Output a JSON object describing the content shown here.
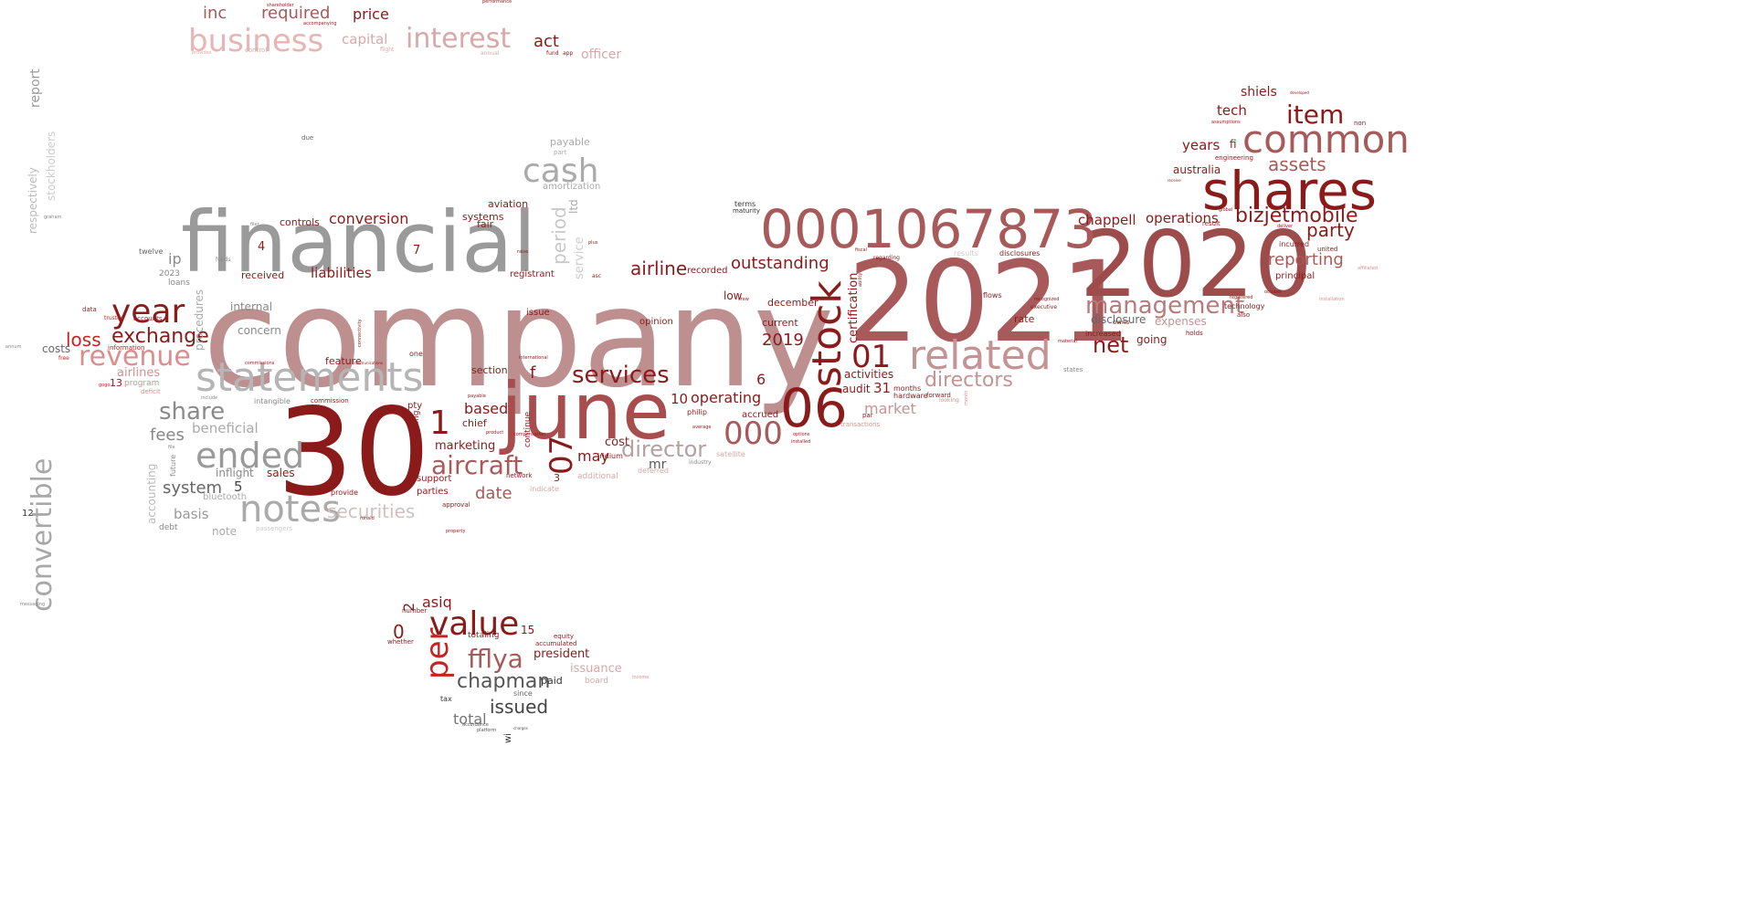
{
  "words": [
    {
      "text": "company",
      "color": "#bd8f8f"
    },
    {
      "text": "financial",
      "color": "#9a9a9a"
    },
    {
      "text": "30",
      "color": "#8b1a1a"
    },
    {
      "text": "2021",
      "color": "#a85a5a"
    },
    {
      "text": "2020",
      "color": "#9e4b4b"
    },
    {
      "text": "june",
      "color": "#a84d4d"
    },
    {
      "text": "shares",
      "color": "#8b1a1a"
    },
    {
      "text": "0001067873",
      "color": "#a85a5a"
    },
    {
      "text": "statements",
      "color": "#b5b5b5"
    },
    {
      "text": "stock",
      "color": "#8b1a1a"
    },
    {
      "text": "06",
      "color": "#8b1a1a"
    },
    {
      "text": "related",
      "color": "#c49494"
    },
    {
      "text": "common",
      "color": "#a85a5a"
    },
    {
      "text": "notes",
      "color": "#aaaaaa"
    },
    {
      "text": "ended",
      "color": "#9a9a9a"
    },
    {
      "text": "business",
      "color": "#e8b4b4"
    },
    {
      "text": "interest",
      "color": "#d9a8a8"
    },
    {
      "text": "cash",
      "color": "#aaaaaa"
    },
    {
      "text": "value",
      "color": "#8b1a1a"
    },
    {
      "text": "year",
      "color": "#8b1a1a"
    },
    {
      "text": "revenue",
      "color": "#d98f8f"
    },
    {
      "text": "convertible",
      "color": "#a8a8a8"
    },
    {
      "text": "aircraft",
      "color": "#a85a5a"
    },
    {
      "text": "management",
      "color": "#b87a7a"
    },
    {
      "text": "item",
      "color": "#8b1a1a"
    },
    {
      "text": "01",
      "color": "#8b1a1a"
    },
    {
      "text": "000",
      "color": "#a85a5a"
    },
    {
      "text": "per",
      "color": "#cc2020"
    },
    {
      "text": "fflya",
      "color": "#a85a5a"
    },
    {
      "text": "director",
      "color": "#b5a0a0"
    },
    {
      "text": "services",
      "color": "#8b1a1a"
    },
    {
      "text": "share",
      "color": "#8a8a8a"
    },
    {
      "text": "bizjetmobile",
      "color": "#8b1a1a"
    },
    {
      "text": "directors",
      "color": "#c49494"
    },
    {
      "text": "exchange",
      "color": "#8b1a1a"
    },
    {
      "text": "chapman",
      "color": "#555555"
    },
    {
      "text": "07",
      "color": "#8b1a1a"
    },
    {
      "text": "1",
      "color": "#8b1a1a"
    },
    {
      "text": "issued",
      "color": "#444444"
    },
    {
      "text": "securities",
      "color": "#d0c0c0"
    },
    {
      "text": "period",
      "color": "#c8c8c8"
    },
    {
      "text": "net",
      "color": "#8b1a1a"
    },
    {
      "text": "assets",
      "color": "#a85a5a"
    },
    {
      "text": "party",
      "color": "#8b1a1a"
    },
    {
      "text": "reporting",
      "color": "#a85a5a"
    },
    {
      "text": "outstanding",
      "color": "#8b1a1a"
    },
    {
      "text": "airline",
      "color": "#8b1a1a"
    },
    {
      "text": "loss",
      "color": "#cc2020"
    },
    {
      "text": "fees",
      "color": "#888888"
    },
    {
      "text": "system",
      "color": "#666666"
    },
    {
      "text": "date",
      "color": "#a85a5a"
    },
    {
      "text": "required",
      "color": "#a85a5a"
    },
    {
      "text": "price",
      "color": "#8b1a1a"
    },
    {
      "text": "inc",
      "color": "#a85a5a"
    },
    {
      "text": "act",
      "color": "#8b1a1a"
    },
    {
      "text": "capital",
      "color": "#d9a8a8"
    },
    {
      "text": "officer",
      "color": "#d9a8a8"
    },
    {
      "text": "conversion",
      "color": "#8b1a1a"
    },
    {
      "text": "liabilities",
      "color": "#8b1a1a"
    },
    {
      "text": "operating",
      "color": "#8b1a1a"
    },
    {
      "text": "based",
      "color": "#8b1a1a"
    },
    {
      "text": "chappell",
      "color": "#8b1a1a"
    },
    {
      "text": "operations",
      "color": "#8b1a1a"
    },
    {
      "text": "market",
      "color": "#c49494"
    },
    {
      "text": "years",
      "color": "#8b1a1a"
    },
    {
      "text": "tech",
      "color": "#8b1a1a"
    },
    {
      "text": "shiels",
      "color": "#8b1a1a"
    },
    {
      "text": "ip",
      "color": "#8a8a8a"
    },
    {
      "text": "beneficial",
      "color": "#aaaaaa"
    },
    {
      "text": "australia",
      "color": "#8b1a1a"
    },
    {
      "text": "disclosure",
      "color": "#666666"
    },
    {
      "text": "expenses",
      "color": "#c49494"
    },
    {
      "text": "going",
      "color": "#8b1a1a"
    },
    {
      "text": "asiq",
      "color": "#8b1a1a"
    },
    {
      "text": "president",
      "color": "#8b1a1a"
    },
    {
      "text": "issuance",
      "color": "#d9a8a8"
    },
    {
      "text": "total",
      "color": "#777777"
    },
    {
      "text": "2019",
      "color": "#8b1a1a"
    },
    {
      "text": "certification",
      "color": "#8b1a1a"
    },
    {
      "text": "activities",
      "color": "#8b1a1a"
    },
    {
      "text": "audit",
      "color": "#8b1a1a"
    },
    {
      "text": "december",
      "color": "#8b1a1a"
    },
    {
      "text": "current",
      "color": "#8b1a1a"
    },
    {
      "text": "low",
      "color": "#8b1a1a"
    },
    {
      "text": "rate",
      "color": "#8b1a1a"
    },
    {
      "text": "cost",
      "color": "#8b1a1a"
    },
    {
      "text": "may",
      "color": "#8b1a1a"
    },
    {
      "text": "mr",
      "color": "#555555"
    },
    {
      "text": "marketing",
      "color": "#8b1a1a"
    },
    {
      "text": "chief",
      "color": "#8b1a1a"
    },
    {
      "text": "section",
      "color": "#8b1a1a"
    },
    {
      "text": "feature",
      "color": "#8b1a1a"
    },
    {
      "text": "concern",
      "color": "#888888"
    },
    {
      "text": "internal",
      "color": "#888888"
    },
    {
      "text": "received",
      "color": "#8b1a1a"
    },
    {
      "text": "airlines",
      "color": "#d98f8f"
    },
    {
      "text": "costs",
      "color": "#666666"
    },
    {
      "text": "report",
      "color": "#999999"
    },
    {
      "text": "stockholders",
      "color": "#cccccc"
    },
    {
      "text": "respectively",
      "color": "#bbbbbb"
    },
    {
      "text": "procedures",
      "color": "#aaaaaa"
    },
    {
      "text": "accounting",
      "color": "#bbbbbb"
    },
    {
      "text": "inflight",
      "color": "#888888"
    },
    {
      "text": "sales",
      "color": "#8b1a1a"
    },
    {
      "text": "basis",
      "color": "#999999"
    },
    {
      "text": "note",
      "color": "#aaaaaa"
    },
    {
      "text": "bluetooth",
      "color": "#aaaaaa"
    },
    {
      "text": "payable",
      "color": "#aaaaaa"
    },
    {
      "text": "amortization",
      "color": "#aaaaaa"
    },
    {
      "text": "ltd",
      "color": "#aaaaaa"
    },
    {
      "text": "service",
      "color": "#cccccc"
    },
    {
      "text": "aviation",
      "color": "#8b1a1a"
    },
    {
      "text": "systems",
      "color": "#8b1a1a"
    },
    {
      "text": "fair",
      "color": "#8b1a1a"
    },
    {
      "text": "controls",
      "color": "#8b1a1a"
    },
    {
      "text": "registrant",
      "color": "#8b1a1a"
    },
    {
      "text": "issue",
      "color": "#8b1a1a"
    },
    {
      "text": "recorded",
      "color": "#8b1a1a"
    },
    {
      "text": "opinion",
      "color": "#8b1a1a"
    },
    {
      "text": "f",
      "color": "#8b1a1a"
    },
    {
      "text": "fi",
      "color": "#8b1a1a"
    },
    {
      "text": "6",
      "color": "#8b1a1a"
    },
    {
      "text": "10",
      "color": "#8b1a1a"
    },
    {
      "text": "31",
      "color": "#8b1a1a"
    },
    {
      "text": "5",
      "color": "#444444"
    },
    {
      "text": "4",
      "color": "#8b1a1a"
    },
    {
      "text": "7",
      "color": "#8b1a1a"
    },
    {
      "text": "0",
      "color": "#8b1a1a"
    },
    {
      "text": "2",
      "color": "#8b1a1a"
    },
    {
      "text": "3",
      "color": "#8b1a1a"
    },
    {
      "text": "15",
      "color": "#8b1a1a"
    },
    {
      "text": "13",
      "color": "#8b1a1a"
    },
    {
      "text": "12",
      "color": "#333333"
    },
    {
      "text": "paid",
      "color": "#333333"
    },
    {
      "text": "months",
      "color": "#8b1a1a"
    },
    {
      "text": "hardware",
      "color": "#8b1a1a"
    },
    {
      "text": "flows",
      "color": "#8b1a1a"
    },
    {
      "text": "forward",
      "color": "#8b1a1a"
    },
    {
      "text": "increased",
      "color": "#8b1a1a"
    },
    {
      "text": "principal",
      "color": "#8b1a1a"
    },
    {
      "text": "incurred",
      "color": "#8b1a1a"
    },
    {
      "text": "united",
      "color": "#8b1a1a"
    },
    {
      "text": "technology",
      "color": "#8b1a1a"
    },
    {
      "text": "also",
      "color": "#8b1a1a"
    },
    {
      "text": "holds",
      "color": "#8b1a1a"
    },
    {
      "text": "result",
      "color": "#8b1a1a"
    },
    {
      "text": "engineering",
      "color": "#8b1a1a"
    },
    {
      "text": "owns",
      "color": "#8b1a1a"
    },
    {
      "text": "terms",
      "color": "#333333"
    },
    {
      "text": "maturity",
      "color": "#333333"
    },
    {
      "text": "accrued",
      "color": "#8b1a1a"
    },
    {
      "text": "philip",
      "color": "#8b1a1a"
    },
    {
      "text": "iridium",
      "color": "#8b1a1a"
    },
    {
      "text": "support",
      "color": "#8b1a1a"
    },
    {
      "text": "parties",
      "color": "#8b1a1a"
    },
    {
      "text": "provide",
      "color": "#8b1a1a"
    },
    {
      "text": "approval",
      "color": "#8b1a1a"
    },
    {
      "text": "pty",
      "color": "#8b1a1a"
    },
    {
      "text": "one",
      "color": "#8b1a1a"
    },
    {
      "text": "following",
      "color": "#8b1a1a"
    },
    {
      "text": "continue",
      "color": "#8b1a1a"
    },
    {
      "text": "additional",
      "color": "#d9a8a8"
    },
    {
      "text": "deferred",
      "color": "#d9a8a8"
    },
    {
      "text": "indicate",
      "color": "#d9a8a8"
    },
    {
      "text": "network",
      "color": "#8b1a1a"
    },
    {
      "text": "results",
      "color": "#cccccc"
    },
    {
      "text": "disclosures",
      "color": "#8b1a1a"
    },
    {
      "text": "accumulated",
      "color": "#8b1a1a"
    },
    {
      "text": "equity",
      "color": "#8b1a1a"
    },
    {
      "text": "board",
      "color": "#d9a8a8"
    },
    {
      "text": "totaling",
      "color": "#8b1a1a"
    },
    {
      "text": "number",
      "color": "#8b1a1a"
    },
    {
      "text": "whether",
      "color": "#8b1a1a"
    },
    {
      "text": "since",
      "color": "#666666"
    },
    {
      "text": "tax",
      "color": "#333333"
    },
    {
      "text": "wi",
      "color": "#333333"
    },
    {
      "text": "twelve",
      "color": "#666666"
    },
    {
      "text": "loans",
      "color": "#888888"
    },
    {
      "text": "2023",
      "color": "#888888"
    },
    {
      "text": "debt",
      "color": "#888888"
    },
    {
      "text": "future",
      "color": "#888888"
    },
    {
      "text": "intangible",
      "color": "#888888"
    },
    {
      "text": "commission",
      "color": "#8b1a1a"
    },
    {
      "text": "accounts",
      "color": "#8b1a1a"
    },
    {
      "text": "information",
      "color": "#cc2020"
    },
    {
      "text": "program",
      "color": "#d98f8f"
    },
    {
      "text": "deficit",
      "color": "#d98f8f"
    },
    {
      "text": "data",
      "color": "#8b1a1a"
    },
    {
      "text": "free",
      "color": "#cc2020"
    },
    {
      "text": "trustee",
      "color": "#cc2020"
    },
    {
      "text": "funds",
      "color": "#888888"
    },
    {
      "text": "due",
      "color": "#666666"
    },
    {
      "text": "part",
      "color": "#aaaaaa"
    },
    {
      "text": "control",
      "color": "#d9a8a8"
    },
    {
      "text": "flight",
      "color": "#d9a8a8"
    },
    {
      "text": "fund",
      "color": "#8b1a1a"
    },
    {
      "text": "app",
      "color": "#8b1a1a"
    },
    {
      "text": "annual",
      "color": "#d9a8a8"
    },
    {
      "text": "provides",
      "color": "#d9a8a8"
    },
    {
      "text": "shareholder",
      "color": "#8b1a1a"
    },
    {
      "text": "accompanying",
      "color": "#8b1a1a"
    },
    {
      "text": "performance",
      "color": "#8b1a1a"
    },
    {
      "text": "developed",
      "color": "#8b1a1a"
    },
    {
      "text": "assumptions",
      "color": "#8b1a1a"
    },
    {
      "text": "non",
      "color": "#8b1a1a"
    },
    {
      "text": "global",
      "color": "#8b1a1a"
    },
    {
      "text": "receive",
      "color": "#8b1a1a"
    },
    {
      "text": "deliver",
      "color": "#8b1a1a"
    },
    {
      "text": "registered",
      "color": "#8b1a1a"
    },
    {
      "text": "october",
      "color": "#8b1a1a"
    },
    {
      "text": "affiliated",
      "color": "#d98f8f"
    },
    {
      "text": "installation",
      "color": "#d98f8f"
    },
    {
      "text": "executive",
      "color": "#8b1a1a"
    },
    {
      "text": "recognized",
      "color": "#8b1a1a"
    },
    {
      "text": "regarding",
      "color": "#8b1a1a"
    },
    {
      "text": "fiscal",
      "color": "#8b1a1a"
    },
    {
      "text": "ability",
      "color": "#8b1a1a"
    },
    {
      "text": "states",
      "color": "#888888"
    },
    {
      "text": "material",
      "color": "#8b1a1a"
    },
    {
      "text": "looking",
      "color": "#d98f8f"
    },
    {
      "text": "month",
      "color": "#d98f8f"
    },
    {
      "text": "par",
      "color": "#8b1a1a"
    },
    {
      "text": "transactions",
      "color": "#d98f8f"
    },
    {
      "text": "satellite",
      "color": "#d9a8a8"
    },
    {
      "text": "industry",
      "color": "#888888"
    },
    {
      "text": "average",
      "color": "#8b1a1a"
    },
    {
      "text": "crew",
      "color": "#8b1a1a"
    },
    {
      "text": "options",
      "color": "#8b1a1a"
    },
    {
      "text": "installed",
      "color": "#8b1a1a"
    },
    {
      "text": "compensation",
      "color": "#8b1a1a"
    },
    {
      "text": "product",
      "color": "#8b1a1a"
    },
    {
      "text": "payable2",
      "color": "#8b1a1a"
    },
    {
      "text": "plus",
      "color": "#8b1a1a"
    },
    {
      "text": "asc",
      "color": "#8b1a1a"
    },
    {
      "text": "international",
      "color": "#8b1a1a"
    },
    {
      "text": "raise",
      "color": "#8b1a1a"
    },
    {
      "text": "filer",
      "color": "#888888"
    },
    {
      "text": "graham",
      "color": "#888888"
    },
    {
      "text": "ronald",
      "color": "#8b1a1a"
    },
    {
      "text": "platform",
      "color": "#555555"
    },
    {
      "text": "accordance",
      "color": "#555555"
    },
    {
      "text": "income",
      "color": "#d98f8f"
    },
    {
      "text": "messaging",
      "color": "#888888"
    },
    {
      "text": "annum",
      "color": "#888888"
    },
    {
      "text": "property",
      "color": "#8b1a1a"
    },
    {
      "text": "include",
      "color": "#888888"
    },
    {
      "text": "file",
      "color": "#888888"
    },
    {
      "text": "commissions",
      "color": "#8b1a1a"
    },
    {
      "text": "communications",
      "color": "#8b1a1a"
    },
    {
      "text": "connectivity",
      "color": "#8b1a1a"
    },
    {
      "text": "passengers",
      "color": "#cccccc"
    },
    {
      "text": "gogo",
      "color": "#cc2020"
    },
    {
      "text": "charges",
      "color": "#555555"
    }
  ]
}
